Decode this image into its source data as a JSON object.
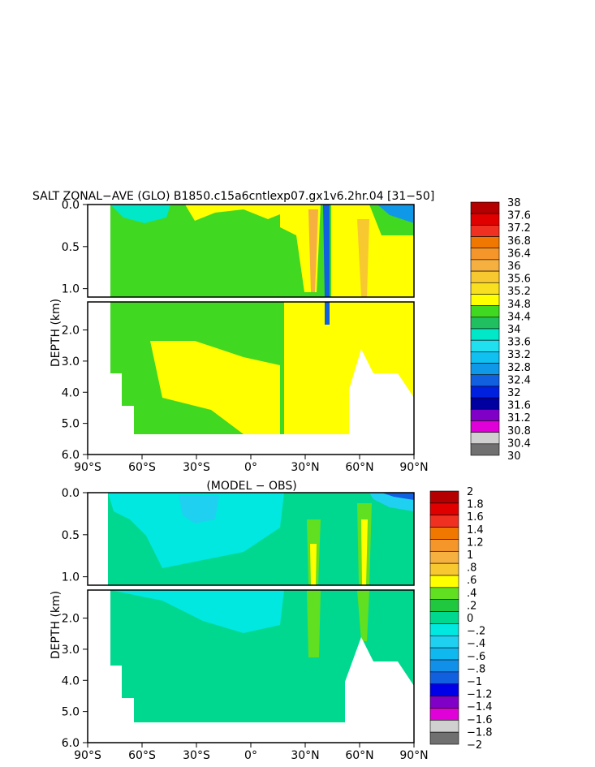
{
  "chart_data": [
    {
      "type": "heatmap",
      "title": "SALT ZONAL−AVE (GLO) B1850.c15a6cntlexp07.gx1v6.2hr.04 [31−50]",
      "ylabel": "DEPTH (km)",
      "xlabel": "",
      "x_ticks": [
        "90°S",
        "60°S",
        "30°S",
        "0°",
        "30°N",
        "60°N",
        "90°N"
      ],
      "y_ticks_top": [
        "0.0",
        "0.5",
        "1.0"
      ],
      "y_ticks_bottom": [
        "2.0",
        "3.0",
        "4.0",
        "5.0",
        "6.0"
      ],
      "xlim": [
        -90,
        90
      ],
      "ylim": [
        0,
        6
      ],
      "colorbar_labels": [
        "38",
        "37.6",
        "37.2",
        "36.8",
        "36.4",
        "36",
        "35.6",
        "35.2",
        "34.8",
        "34.4",
        "34",
        "33.6",
        "33.2",
        "32.8",
        "32.4",
        "32",
        "31.6",
        "31.2",
        "30.8",
        "30.4",
        "30"
      ],
      "colorbar_colors": [
        "#b40000",
        "#e00000",
        "#f03020",
        "#f07800",
        "#f5962a",
        "#f5b040",
        "#f8c830",
        "#f8e020",
        "#ffff00",
        "#40d820",
        "#20c060",
        "#00e8c8",
        "#20e0f0",
        "#10c0f0",
        "#1098e8",
        "#1060e0",
        "#0020e0",
        "#0000a0",
        "#8000c8",
        "#e000d8",
        "#d0d0d0",
        "#707070"
      ]
    },
    {
      "type": "heatmap",
      "title": "(MODEL − OBS)",
      "ylabel": "DEPTH (km)",
      "xlabel": "",
      "x_ticks": [
        "90°S",
        "60°S",
        "30°S",
        "0°",
        "30°N",
        "60°N",
        "90°N"
      ],
      "y_ticks_top": [
        "0.0",
        "0.5",
        "1.0"
      ],
      "y_ticks_bottom": [
        "2.0",
        "3.0",
        "4.0",
        "5.0",
        "6.0"
      ],
      "xlim": [
        -90,
        90
      ],
      "ylim": [
        0,
        6
      ],
      "colorbar_labels": [
        "2",
        "1.8",
        "1.6",
        "1.4",
        "1.2",
        "1",
        ".8",
        ".6",
        ".4",
        ".2",
        "0",
        "−.2",
        "−.4",
        "−.6",
        "−.8",
        "−1",
        "−1.2",
        "−1.4",
        "−1.6",
        "−1.8",
        "−2"
      ],
      "colorbar_colors": [
        "#b40000",
        "#e00000",
        "#f03020",
        "#f07800",
        "#f5962a",
        "#f5b040",
        "#f8c830",
        "#ffff00",
        "#60e020",
        "#20c840",
        "#00d890",
        "#00e8e0",
        "#20d0f0",
        "#10b8f0",
        "#1090e8",
        "#1060e0",
        "#0000e8",
        "#8000c8",
        "#e000d8",
        "#d0d0d0",
        "#707070"
      ]
    }
  ]
}
